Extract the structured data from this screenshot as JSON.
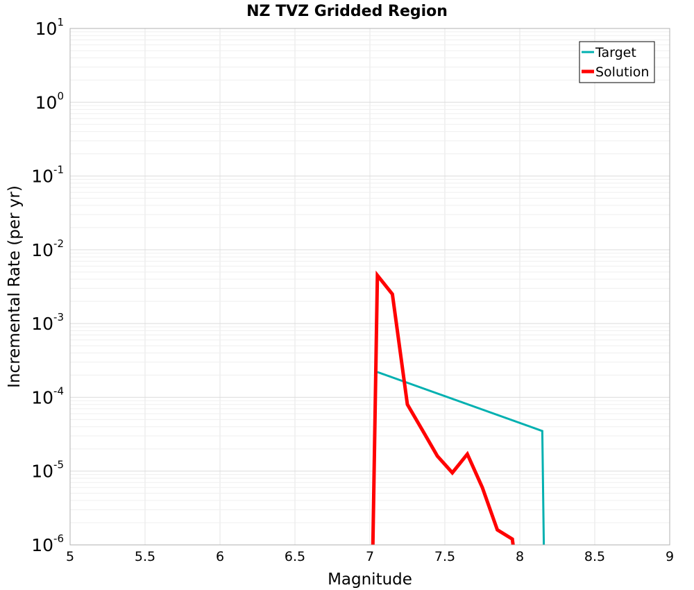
{
  "chart_data": {
    "type": "line",
    "title": "NZ TVZ Gridded Region",
    "xlabel": "Magnitude",
    "ylabel": "Incremental Rate (per yr)",
    "xlim": [
      5,
      9
    ],
    "ylim": [
      1e-06,
      10
    ],
    "yscale": "log",
    "grid": true,
    "legend_position": "top-right",
    "x_ticks": [
      "5",
      "5.5",
      "6",
      "6.5",
      "7",
      "7.5",
      "8",
      "8.5",
      "9"
    ],
    "y_ticks": [
      {
        "base": "10",
        "exp": "1"
      },
      {
        "base": "10",
        "exp": "0"
      },
      {
        "base": "10",
        "exp": "-1"
      },
      {
        "base": "10",
        "exp": "-2"
      },
      {
        "base": "10",
        "exp": "-3"
      },
      {
        "base": "10",
        "exp": "-4"
      },
      {
        "base": "10",
        "exp": "-5"
      },
      {
        "base": "10",
        "exp": "-6"
      }
    ],
    "series": [
      {
        "name": "Target",
        "color": "#00b0b0",
        "points": [
          [
            7.05,
            0.00022
          ],
          [
            8.15,
            3.5e-05
          ],
          [
            8.16,
            1e-06
          ]
        ]
      },
      {
        "name": "Solution",
        "color": "#ff0000",
        "points": [
          [
            7.02,
            1e-06
          ],
          [
            7.05,
            0.0045
          ],
          [
            7.15,
            0.0025
          ],
          [
            7.25,
            8e-05
          ],
          [
            7.35,
            3.6e-05
          ],
          [
            7.45,
            1.6e-05
          ],
          [
            7.55,
            9.5e-06
          ],
          [
            7.65,
            1.7e-05
          ],
          [
            7.75,
            6e-06
          ],
          [
            7.85,
            1.6e-06
          ],
          [
            7.95,
            1.2e-06
          ],
          [
            7.955,
            1e-06
          ]
        ]
      }
    ]
  }
}
